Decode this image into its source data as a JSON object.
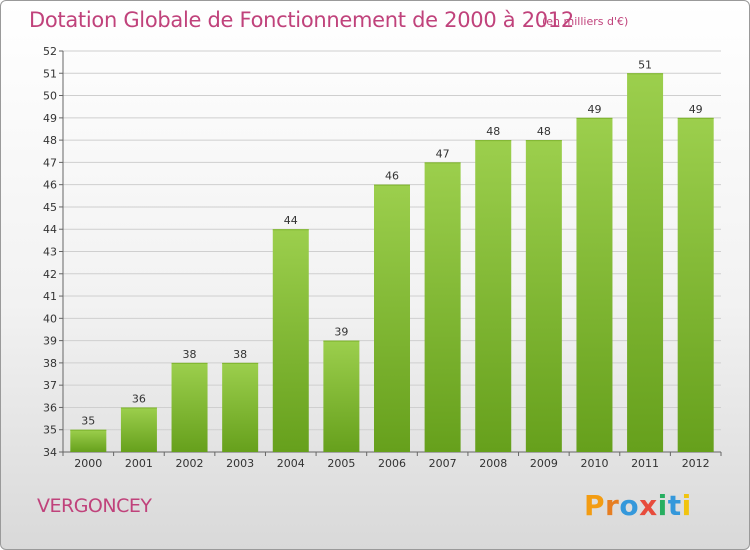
{
  "header": {
    "title": "Dotation Globale de Fonctionnement de 2000 à 2012",
    "unit": "(en milliers d'€)"
  },
  "footer": {
    "commune": "VERGONCEY",
    "logo": {
      "letters": [
        "P",
        "r",
        "o",
        "x",
        "i",
        "t",
        "i"
      ],
      "colors": [
        "#f39c12",
        "#e67e22",
        "#3498db",
        "#e74c3c",
        "#27ae60",
        "#3498db",
        "#f1c40f"
      ]
    }
  },
  "chart_data": {
    "type": "bar",
    "categories": [
      "2000",
      "2001",
      "2002",
      "2003",
      "2004",
      "2005",
      "2006",
      "2007",
      "2008",
      "2009",
      "2010",
      "2011",
      "2012"
    ],
    "values": [
      35,
      36,
      38,
      38,
      44,
      39,
      46,
      47,
      48,
      48,
      49,
      51,
      49
    ],
    "ylim": [
      34,
      52
    ],
    "yticks": [
      34,
      35,
      36,
      37,
      38,
      39,
      40,
      41,
      42,
      43,
      44,
      45,
      46,
      47,
      48,
      49,
      50,
      51,
      52
    ],
    "grid": true,
    "colors": {
      "bar_light": "#9ccf4d",
      "bar_dark": "#66a01c",
      "grid": "#cfcfcf",
      "title": "#c0427b"
    }
  }
}
